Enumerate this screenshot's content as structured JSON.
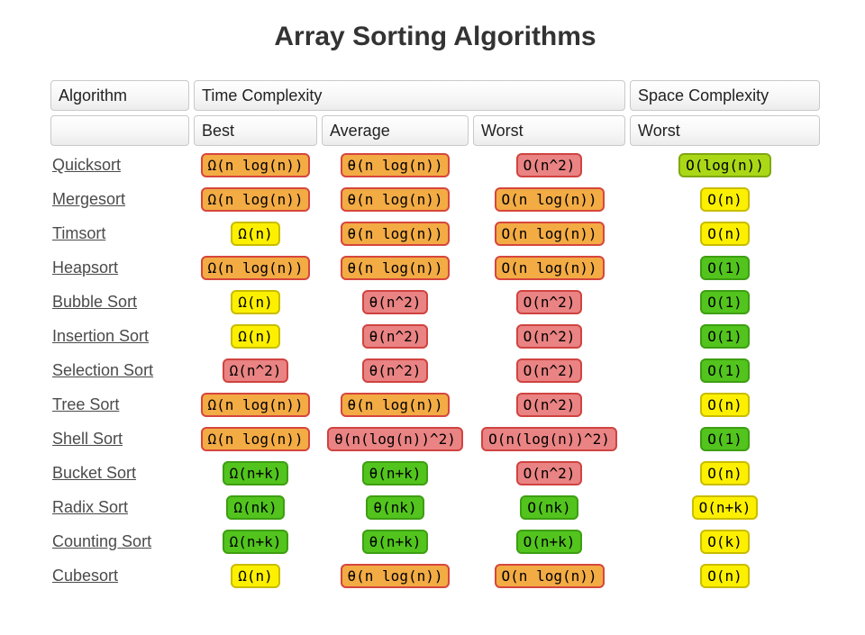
{
  "page": {
    "title": "Array Sorting Algorithms"
  },
  "table": {
    "headers": {
      "algorithm": "Algorithm",
      "time_complexity": "Time Complexity",
      "space_complexity": "Space Complexity",
      "best": "Best",
      "average": "Average",
      "worst": "Worst",
      "space_worst": "Worst"
    },
    "rows": [
      {
        "name": "Quicksort",
        "best": {
          "label": "Ω(n log(n))",
          "level": "orange"
        },
        "average": {
          "label": "θ(n log(n))",
          "level": "orange"
        },
        "worst": {
          "label": "O(n^2)",
          "level": "red"
        },
        "space_worst": {
          "label": "O(log(n))",
          "level": "yellowgreen"
        }
      },
      {
        "name": "Mergesort",
        "best": {
          "label": "Ω(n log(n))",
          "level": "orange"
        },
        "average": {
          "label": "θ(n log(n))",
          "level": "orange"
        },
        "worst": {
          "label": "O(n log(n))",
          "level": "orange"
        },
        "space_worst": {
          "label": "O(n)",
          "level": "yellow"
        }
      },
      {
        "name": "Timsort",
        "best": {
          "label": "Ω(n)",
          "level": "yellow"
        },
        "average": {
          "label": "θ(n log(n))",
          "level": "orange"
        },
        "worst": {
          "label": "O(n log(n))",
          "level": "orange"
        },
        "space_worst": {
          "label": "O(n)",
          "level": "yellow"
        }
      },
      {
        "name": "Heapsort",
        "best": {
          "label": "Ω(n log(n))",
          "level": "orange"
        },
        "average": {
          "label": "θ(n log(n))",
          "level": "orange"
        },
        "worst": {
          "label": "O(n log(n))",
          "level": "orange"
        },
        "space_worst": {
          "label": "O(1)",
          "level": "green"
        }
      },
      {
        "name": "Bubble Sort",
        "best": {
          "label": "Ω(n)",
          "level": "yellow"
        },
        "average": {
          "label": "θ(n^2)",
          "level": "red"
        },
        "worst": {
          "label": "O(n^2)",
          "level": "red"
        },
        "space_worst": {
          "label": "O(1)",
          "level": "green"
        }
      },
      {
        "name": "Insertion Sort",
        "best": {
          "label": "Ω(n)",
          "level": "yellow"
        },
        "average": {
          "label": "θ(n^2)",
          "level": "red"
        },
        "worst": {
          "label": "O(n^2)",
          "level": "red"
        },
        "space_worst": {
          "label": "O(1)",
          "level": "green"
        }
      },
      {
        "name": "Selection Sort",
        "best": {
          "label": "Ω(n^2)",
          "level": "red"
        },
        "average": {
          "label": "θ(n^2)",
          "level": "red"
        },
        "worst": {
          "label": "O(n^2)",
          "level": "red"
        },
        "space_worst": {
          "label": "O(1)",
          "level": "green"
        }
      },
      {
        "name": "Tree Sort",
        "best": {
          "label": "Ω(n log(n))",
          "level": "orange"
        },
        "average": {
          "label": "θ(n log(n))",
          "level": "orange"
        },
        "worst": {
          "label": "O(n^2)",
          "level": "red"
        },
        "space_worst": {
          "label": "O(n)",
          "level": "yellow"
        }
      },
      {
        "name": "Shell Sort",
        "best": {
          "label": "Ω(n log(n))",
          "level": "orange"
        },
        "average": {
          "label": "θ(n(log(n))^2)",
          "level": "red"
        },
        "worst": {
          "label": "O(n(log(n))^2)",
          "level": "red"
        },
        "space_worst": {
          "label": "O(1)",
          "level": "green"
        }
      },
      {
        "name": "Bucket Sort",
        "best": {
          "label": "Ω(n+k)",
          "level": "green"
        },
        "average": {
          "label": "θ(n+k)",
          "level": "green"
        },
        "worst": {
          "label": "O(n^2)",
          "level": "red"
        },
        "space_worst": {
          "label": "O(n)",
          "level": "yellow"
        }
      },
      {
        "name": "Radix Sort",
        "best": {
          "label": "Ω(nk)",
          "level": "green"
        },
        "average": {
          "label": "θ(nk)",
          "level": "green"
        },
        "worst": {
          "label": "O(nk)",
          "level": "green"
        },
        "space_worst": {
          "label": "O(n+k)",
          "level": "yellow"
        }
      },
      {
        "name": "Counting Sort",
        "best": {
          "label": "Ω(n+k)",
          "level": "green"
        },
        "average": {
          "label": "θ(n+k)",
          "level": "green"
        },
        "worst": {
          "label": "O(n+k)",
          "level": "green"
        },
        "space_worst": {
          "label": "O(k)",
          "level": "yellow"
        }
      },
      {
        "name": "Cubesort",
        "best": {
          "label": "Ω(n)",
          "level": "yellow"
        },
        "average": {
          "label": "θ(n log(n))",
          "level": "orange"
        },
        "worst": {
          "label": "O(n log(n))",
          "level": "orange"
        },
        "space_worst": {
          "label": "O(n)",
          "level": "yellow"
        }
      }
    ]
  },
  "colors": {
    "orange": {
      "bg": "#f3ab44",
      "border": "#d6463d"
    },
    "red": {
      "bg": "#ea8383",
      "border": "#d04340"
    },
    "yellow": {
      "bg": "#fcf000",
      "border": "#c9bc00"
    },
    "yellowgreen": {
      "bg": "#aad816",
      "border": "#7fa711"
    },
    "green": {
      "bg": "#52c41d",
      "border": "#3e9e12"
    }
  }
}
